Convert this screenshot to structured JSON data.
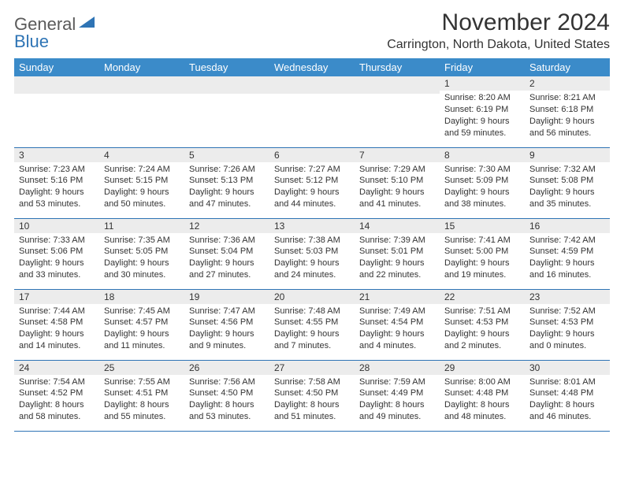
{
  "logo": {
    "text_general": "General",
    "text_blue": "Blue",
    "shape_color": "#2e74b5"
  },
  "header": {
    "month_title": "November 2024",
    "location": "Carrington, North Dakota, United States"
  },
  "colors": {
    "header_bg": "#3b8bc9",
    "header_text": "#ffffff",
    "daynum_bg": "#ececec",
    "rule": "#2e74b5",
    "body_text": "#333333"
  },
  "day_headers": [
    "Sunday",
    "Monday",
    "Tuesday",
    "Wednesday",
    "Thursday",
    "Friday",
    "Saturday"
  ],
  "weeks": [
    [
      {
        "n": "",
        "sunrise": "",
        "sunset": "",
        "daylight": ""
      },
      {
        "n": "",
        "sunrise": "",
        "sunset": "",
        "daylight": ""
      },
      {
        "n": "",
        "sunrise": "",
        "sunset": "",
        "daylight": ""
      },
      {
        "n": "",
        "sunrise": "",
        "sunset": "",
        "daylight": ""
      },
      {
        "n": "",
        "sunrise": "",
        "sunset": "",
        "daylight": ""
      },
      {
        "n": "1",
        "sunrise": "Sunrise: 8:20 AM",
        "sunset": "Sunset: 6:19 PM",
        "daylight": "Daylight: 9 hours and 59 minutes."
      },
      {
        "n": "2",
        "sunrise": "Sunrise: 8:21 AM",
        "sunset": "Sunset: 6:18 PM",
        "daylight": "Daylight: 9 hours and 56 minutes."
      }
    ],
    [
      {
        "n": "3",
        "sunrise": "Sunrise: 7:23 AM",
        "sunset": "Sunset: 5:16 PM",
        "daylight": "Daylight: 9 hours and 53 minutes."
      },
      {
        "n": "4",
        "sunrise": "Sunrise: 7:24 AM",
        "sunset": "Sunset: 5:15 PM",
        "daylight": "Daylight: 9 hours and 50 minutes."
      },
      {
        "n": "5",
        "sunrise": "Sunrise: 7:26 AM",
        "sunset": "Sunset: 5:13 PM",
        "daylight": "Daylight: 9 hours and 47 minutes."
      },
      {
        "n": "6",
        "sunrise": "Sunrise: 7:27 AM",
        "sunset": "Sunset: 5:12 PM",
        "daylight": "Daylight: 9 hours and 44 minutes."
      },
      {
        "n": "7",
        "sunrise": "Sunrise: 7:29 AM",
        "sunset": "Sunset: 5:10 PM",
        "daylight": "Daylight: 9 hours and 41 minutes."
      },
      {
        "n": "8",
        "sunrise": "Sunrise: 7:30 AM",
        "sunset": "Sunset: 5:09 PM",
        "daylight": "Daylight: 9 hours and 38 minutes."
      },
      {
        "n": "9",
        "sunrise": "Sunrise: 7:32 AM",
        "sunset": "Sunset: 5:08 PM",
        "daylight": "Daylight: 9 hours and 35 minutes."
      }
    ],
    [
      {
        "n": "10",
        "sunrise": "Sunrise: 7:33 AM",
        "sunset": "Sunset: 5:06 PM",
        "daylight": "Daylight: 9 hours and 33 minutes."
      },
      {
        "n": "11",
        "sunrise": "Sunrise: 7:35 AM",
        "sunset": "Sunset: 5:05 PM",
        "daylight": "Daylight: 9 hours and 30 minutes."
      },
      {
        "n": "12",
        "sunrise": "Sunrise: 7:36 AM",
        "sunset": "Sunset: 5:04 PM",
        "daylight": "Daylight: 9 hours and 27 minutes."
      },
      {
        "n": "13",
        "sunrise": "Sunrise: 7:38 AM",
        "sunset": "Sunset: 5:03 PM",
        "daylight": "Daylight: 9 hours and 24 minutes."
      },
      {
        "n": "14",
        "sunrise": "Sunrise: 7:39 AM",
        "sunset": "Sunset: 5:01 PM",
        "daylight": "Daylight: 9 hours and 22 minutes."
      },
      {
        "n": "15",
        "sunrise": "Sunrise: 7:41 AM",
        "sunset": "Sunset: 5:00 PM",
        "daylight": "Daylight: 9 hours and 19 minutes."
      },
      {
        "n": "16",
        "sunrise": "Sunrise: 7:42 AM",
        "sunset": "Sunset: 4:59 PM",
        "daylight": "Daylight: 9 hours and 16 minutes."
      }
    ],
    [
      {
        "n": "17",
        "sunrise": "Sunrise: 7:44 AM",
        "sunset": "Sunset: 4:58 PM",
        "daylight": "Daylight: 9 hours and 14 minutes."
      },
      {
        "n": "18",
        "sunrise": "Sunrise: 7:45 AM",
        "sunset": "Sunset: 4:57 PM",
        "daylight": "Daylight: 9 hours and 11 minutes."
      },
      {
        "n": "19",
        "sunrise": "Sunrise: 7:47 AM",
        "sunset": "Sunset: 4:56 PM",
        "daylight": "Daylight: 9 hours and 9 minutes."
      },
      {
        "n": "20",
        "sunrise": "Sunrise: 7:48 AM",
        "sunset": "Sunset: 4:55 PM",
        "daylight": "Daylight: 9 hours and 7 minutes."
      },
      {
        "n": "21",
        "sunrise": "Sunrise: 7:49 AM",
        "sunset": "Sunset: 4:54 PM",
        "daylight": "Daylight: 9 hours and 4 minutes."
      },
      {
        "n": "22",
        "sunrise": "Sunrise: 7:51 AM",
        "sunset": "Sunset: 4:53 PM",
        "daylight": "Daylight: 9 hours and 2 minutes."
      },
      {
        "n": "23",
        "sunrise": "Sunrise: 7:52 AM",
        "sunset": "Sunset: 4:53 PM",
        "daylight": "Daylight: 9 hours and 0 minutes."
      }
    ],
    [
      {
        "n": "24",
        "sunrise": "Sunrise: 7:54 AM",
        "sunset": "Sunset: 4:52 PM",
        "daylight": "Daylight: 8 hours and 58 minutes."
      },
      {
        "n": "25",
        "sunrise": "Sunrise: 7:55 AM",
        "sunset": "Sunset: 4:51 PM",
        "daylight": "Daylight: 8 hours and 55 minutes."
      },
      {
        "n": "26",
        "sunrise": "Sunrise: 7:56 AM",
        "sunset": "Sunset: 4:50 PM",
        "daylight": "Daylight: 8 hours and 53 minutes."
      },
      {
        "n": "27",
        "sunrise": "Sunrise: 7:58 AM",
        "sunset": "Sunset: 4:50 PM",
        "daylight": "Daylight: 8 hours and 51 minutes."
      },
      {
        "n": "28",
        "sunrise": "Sunrise: 7:59 AM",
        "sunset": "Sunset: 4:49 PM",
        "daylight": "Daylight: 8 hours and 49 minutes."
      },
      {
        "n": "29",
        "sunrise": "Sunrise: 8:00 AM",
        "sunset": "Sunset: 4:48 PM",
        "daylight": "Daylight: 8 hours and 48 minutes."
      },
      {
        "n": "30",
        "sunrise": "Sunrise: 8:01 AM",
        "sunset": "Sunset: 4:48 PM",
        "daylight": "Daylight: 8 hours and 46 minutes."
      }
    ]
  ]
}
